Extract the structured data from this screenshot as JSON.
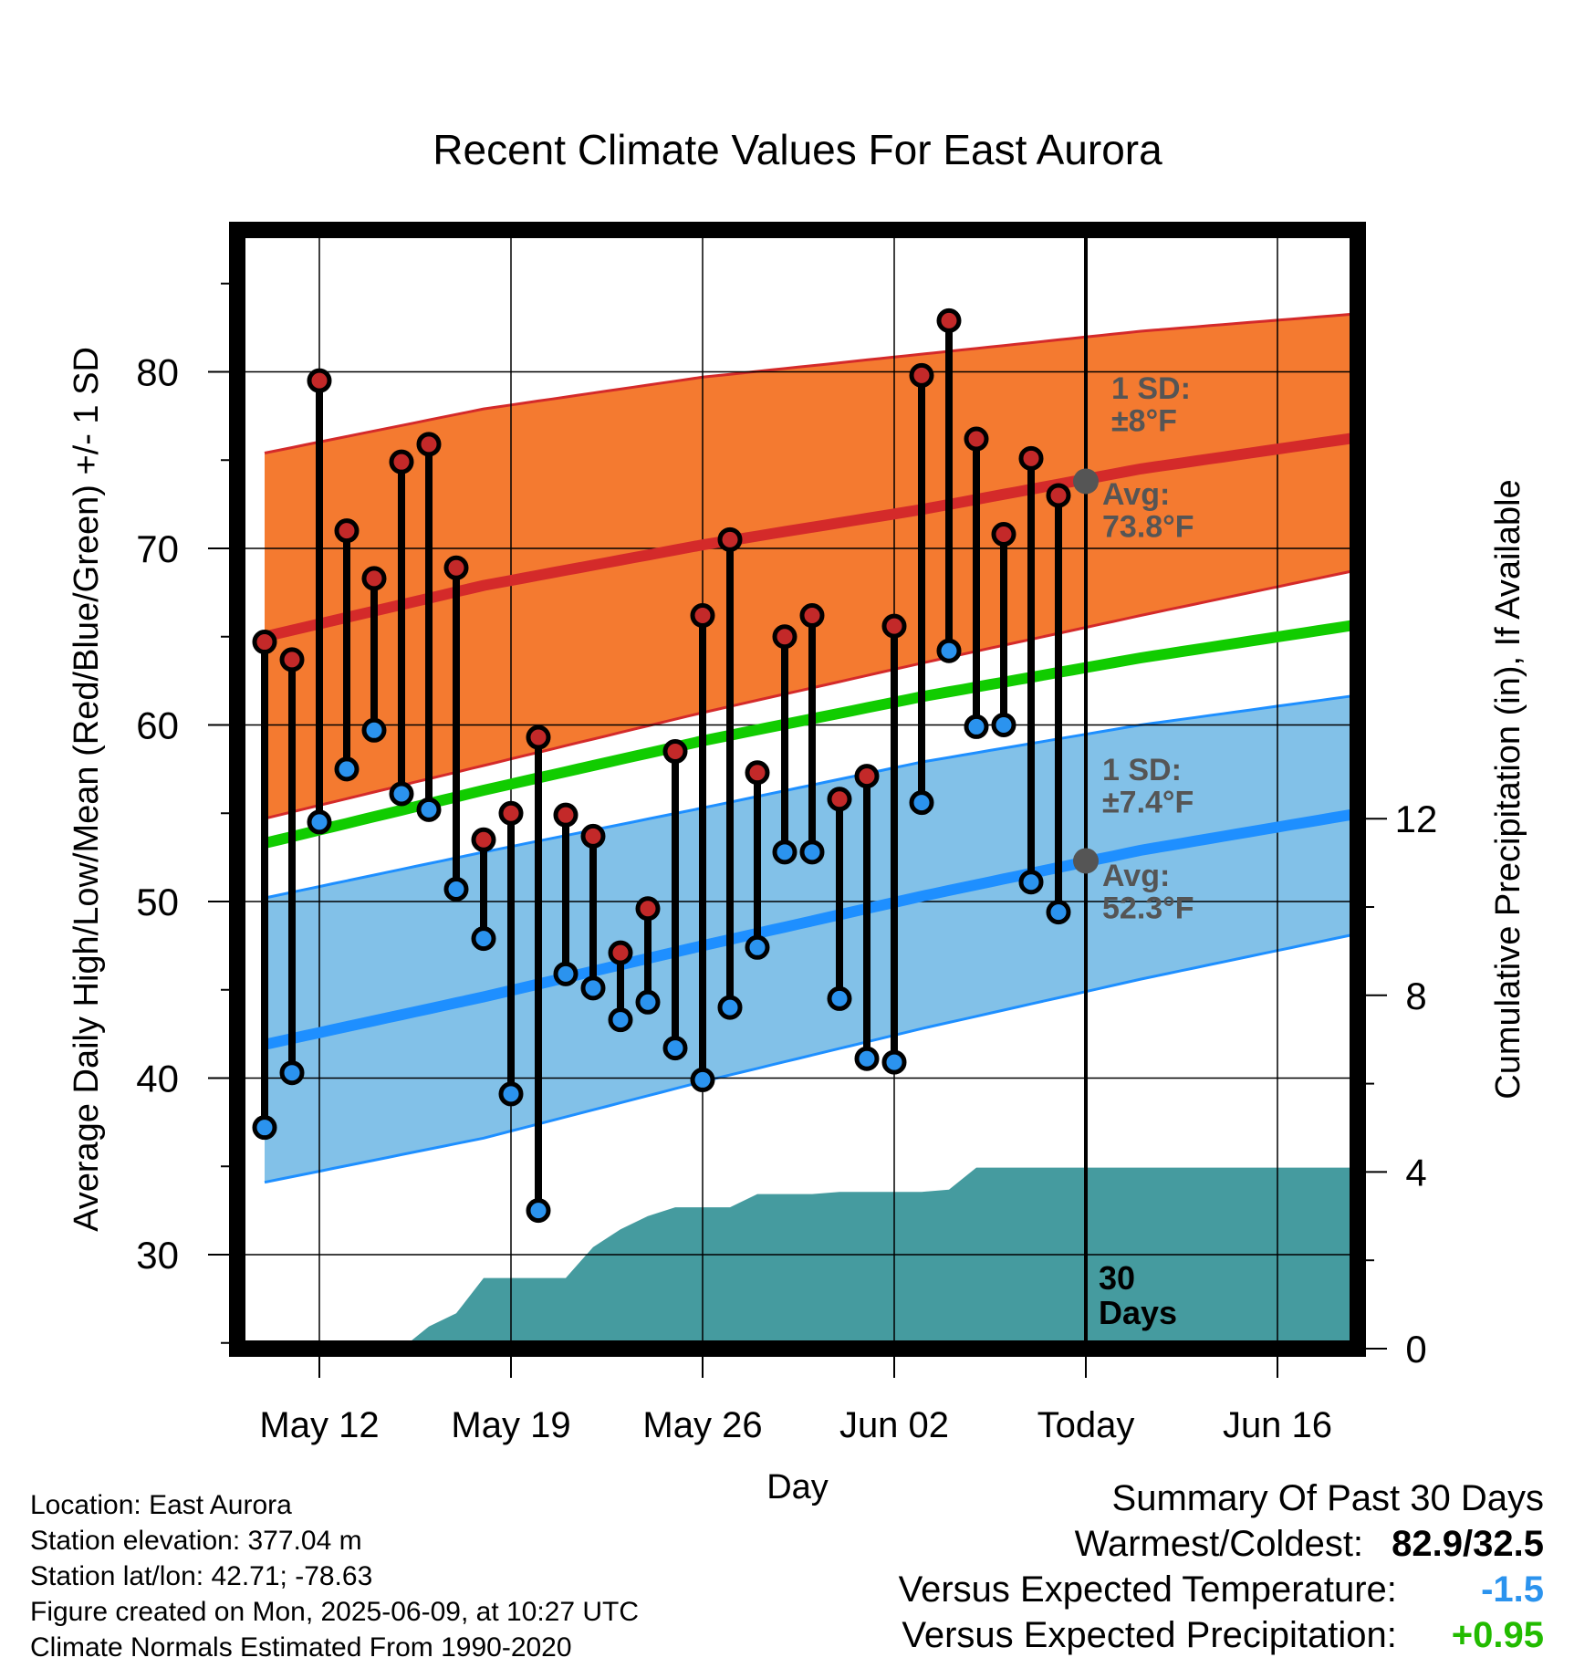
{
  "chart_data": {
    "type": "line",
    "title": "Recent Climate Values For East Aurora",
    "xlabel": "Day",
    "ylabel": "Average Daily High/Low/Mean (Red/Blue/Green) +/- 1 SD",
    "y2label": "Cumulative Precipitation (in), If Available",
    "x_ticks": [
      "May 12",
      "May 19",
      "May 26",
      "Jun 02",
      "Today",
      "Jun 16"
    ],
    "x_tick_days": [
      0,
      7,
      14,
      21,
      28,
      35
    ],
    "xlim": [
      -3,
      38
    ],
    "ylim": [
      25,
      88
    ],
    "y_ticks": [
      30,
      40,
      50,
      60,
      70,
      80
    ],
    "y2lim": [
      0,
      30
    ],
    "y2_ticks": [
      0,
      4,
      8,
      12
    ],
    "grid": true,
    "today_label": "30\nDays",
    "daily_highs": [
      64.7,
      63.7,
      79.5,
      71.0,
      68.3,
      74.9,
      75.9,
      68.9,
      53.5,
      55.0,
      59.3,
      54.9,
      53.7,
      47.1,
      49.6,
      58.5,
      66.2,
      70.5,
      57.3,
      65.0,
      66.2,
      55.8,
      57.1,
      65.6,
      79.8,
      82.9,
      76.2,
      70.8,
      75.1,
      73.0
    ],
    "daily_lows": [
      37.2,
      40.3,
      54.5,
      57.5,
      59.7,
      56.1,
      55.2,
      50.7,
      47.9,
      39.1,
      32.5,
      45.9,
      45.1,
      43.3,
      44.3,
      41.7,
      39.9,
      44.0,
      47.4,
      52.8,
      52.8,
      44.5,
      41.1,
      40.9,
      55.6,
      64.2,
      59.9,
      60.0,
      51.1,
      49.4
    ],
    "normals": {
      "days": [
        -2,
        6,
        14,
        22,
        30,
        38
      ],
      "high_mean": [
        65.0,
        67.9,
        70.2,
        72.2,
        74.5,
        76.3
      ],
      "high_upper": [
        75.4,
        77.9,
        79.7,
        81.0,
        82.3,
        83.3
      ],
      "high_lower": [
        54.7,
        57.7,
        60.7,
        63.5,
        66.2,
        68.8
      ],
      "mean": [
        53.3,
        56.3,
        59.1,
        61.6,
        63.8,
        65.7
      ],
      "low_mean": [
        41.9,
        44.6,
        47.5,
        50.3,
        52.9,
        55.0
      ],
      "low_upper": [
        50.2,
        52.8,
        55.3,
        57.9,
        60.0,
        61.7
      ],
      "low_lower": [
        34.1,
        36.6,
        39.8,
        42.8,
        45.6,
        48.2
      ]
    },
    "precipitation": {
      "days": [
        0,
        1,
        2,
        3,
        4,
        5,
        6,
        7,
        8,
        9,
        10,
        11,
        12,
        13,
        14,
        15,
        16,
        17,
        18,
        19,
        20,
        21,
        22,
        23,
        24,
        25,
        26,
        27,
        28,
        29,
        30,
        31,
        32,
        33,
        34,
        35,
        36,
        37,
        38
      ],
      "values": [
        0,
        0,
        0,
        0,
        0.5,
        0.8,
        1.6,
        1.6,
        1.6,
        1.6,
        2.3,
        2.7,
        3.0,
        3.2,
        3.2,
        3.2,
        3.5,
        3.5,
        3.5,
        3.55,
        3.55,
        3.55,
        3.55,
        3.6,
        4.1,
        4.1,
        4.1,
        4.1,
        4.1,
        4.1,
        4.1,
        4.1,
        4.1,
        4.1,
        4.1,
        4.1,
        4.1,
        4.1,
        4.1
      ],
      "note_start_day": -2
    },
    "annotations": {
      "high_sd": "1 SD:\n±8°F",
      "high_avg": "Avg:\n73.8°F",
      "high_avg_value": 73.8,
      "low_sd": "1 SD:\n±7.4°F",
      "low_avg": "Avg:\n52.3°F",
      "low_avg_value": 52.3
    },
    "colors": {
      "high_band": "#f47a30",
      "high_line": "#d42a2a",
      "low_band": "#82c1e8",
      "low_line": "#1e8fff",
      "mean_line": "#11cc00",
      "precip": "#459b9f",
      "high_dot": "#c32929",
      "low_dot": "#2b93ee",
      "annotation": "#555555"
    }
  },
  "info": {
    "location": "Location: East Aurora",
    "elevation": "Station elevation: 377.04 m",
    "latlon": "Station lat/lon: 42.71; -78.63",
    "created": "Figure created on Mon, 2025-06-09, at 10:27 UTC",
    "normals": "Climate Normals Estimated From 1990-2020"
  },
  "summary": {
    "heading": "Summary Of Past 30 Days",
    "warmest_label": "Warmest/Coldest:",
    "warmest_value": "82.9/32.5",
    "temp_label": "Versus Expected Temperature:",
    "temp_value": "-1.5",
    "temp_color": "#2b93ee",
    "precip_label": "Versus Expected Precipitation:",
    "precip_value": "+0.95",
    "precip_color": "#22bb00"
  }
}
